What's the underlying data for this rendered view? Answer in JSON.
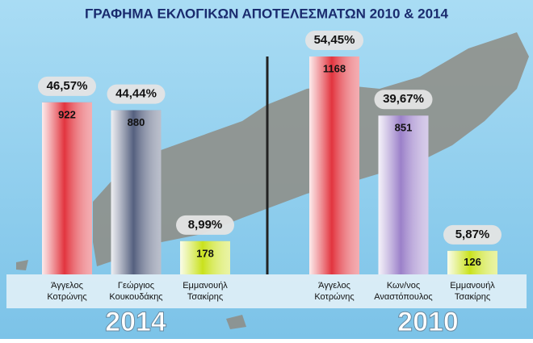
{
  "title": "ΓΡΑΦΗΜΑ  ΕΚΛΟΓΙΚΩΝ ΑΠΟΤΕΛΕΣΜΑΤΩΝ 2010 & 2014",
  "chart_data": [
    {
      "type": "bar",
      "year": "2014",
      "categories": [
        [
          "Άγγελος",
          "Κοτρώνης"
        ],
        [
          "Γεώργιος",
          "Κουκουδάκης"
        ],
        [
          "Εμμανουήλ",
          "Τσακίρης"
        ]
      ],
      "values": [
        922,
        880,
        178
      ],
      "percentages": [
        46.57,
        44.44,
        8.99
      ],
      "percentage_labels": [
        "46,57%",
        "44,44%",
        "8,99%"
      ],
      "colors": [
        "#e2343e",
        "#55607f",
        "#c9e21c"
      ]
    },
    {
      "type": "bar",
      "year": "2010",
      "categories": [
        [
          "Άγγελος",
          "Κοτρώνης"
        ],
        [
          "Κων/νος",
          "Αναστόπουλος"
        ],
        [
          "Εμμανουήλ",
          "Τσακίρης"
        ]
      ],
      "values": [
        1168,
        851,
        126
      ],
      "percentages": [
        54.45,
        39.67,
        5.87
      ],
      "percentage_labels": [
        "54,45%",
        "39,67%",
        "5,87%"
      ],
      "colors": [
        "#e2343e",
        "#9b80c9",
        "#c9e21c"
      ]
    }
  ]
}
